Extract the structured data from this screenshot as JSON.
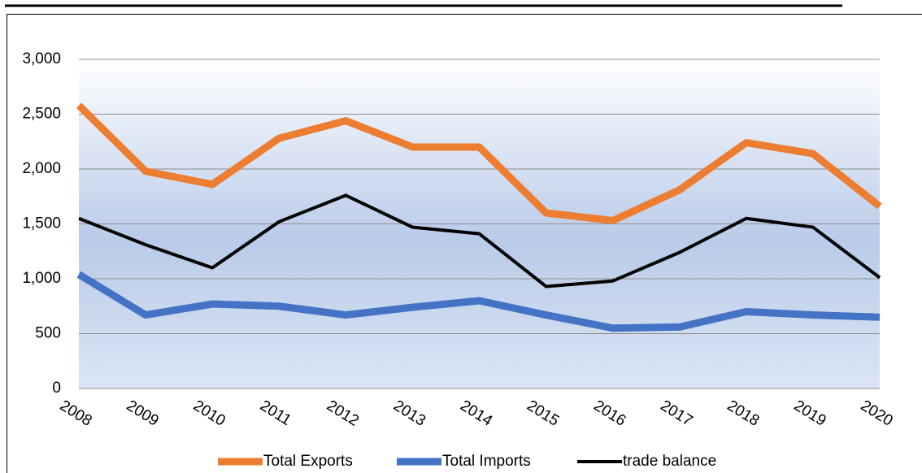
{
  "chart_data": {
    "type": "line",
    "categories": [
      "2008",
      "2009",
      "2010",
      "2011",
      "2012",
      "2013",
      "2014",
      "2015",
      "2016",
      "2017",
      "2018",
      "2019",
      "2020"
    ],
    "series": [
      {
        "name": "Total Exports",
        "color": "#ed7d31",
        "values": [
          2580,
          1980,
          1860,
          2280,
          2440,
          2200,
          2200,
          1600,
          1530,
          1810,
          2240,
          2140,
          1660
        ]
      },
      {
        "name": "Total Imports",
        "color": "#4472c4",
        "values": [
          1040,
          670,
          770,
          750,
          670,
          740,
          800,
          670,
          550,
          560,
          700,
          670,
          650
        ]
      },
      {
        "name": "trade balance",
        "color": "#000000",
        "values": [
          1550,
          1310,
          1100,
          1520,
          1760,
          1470,
          1410,
          930,
          980,
          1240,
          1550,
          1470,
          1010
        ]
      }
    ],
    "ylim": [
      0,
      3000
    ],
    "yticks": [
      0,
      500,
      {
        "value": 1000,
        "label": "1,000"
      },
      {
        "value": 1500,
        "label": "1,500"
      },
      {
        "value": 2000,
        "label": "2,000"
      },
      {
        "value": 2500,
        "label": "2,500"
      },
      {
        "value": 3000,
        "label": "3,000"
      }
    ],
    "grid": true,
    "legend": "bottom"
  }
}
